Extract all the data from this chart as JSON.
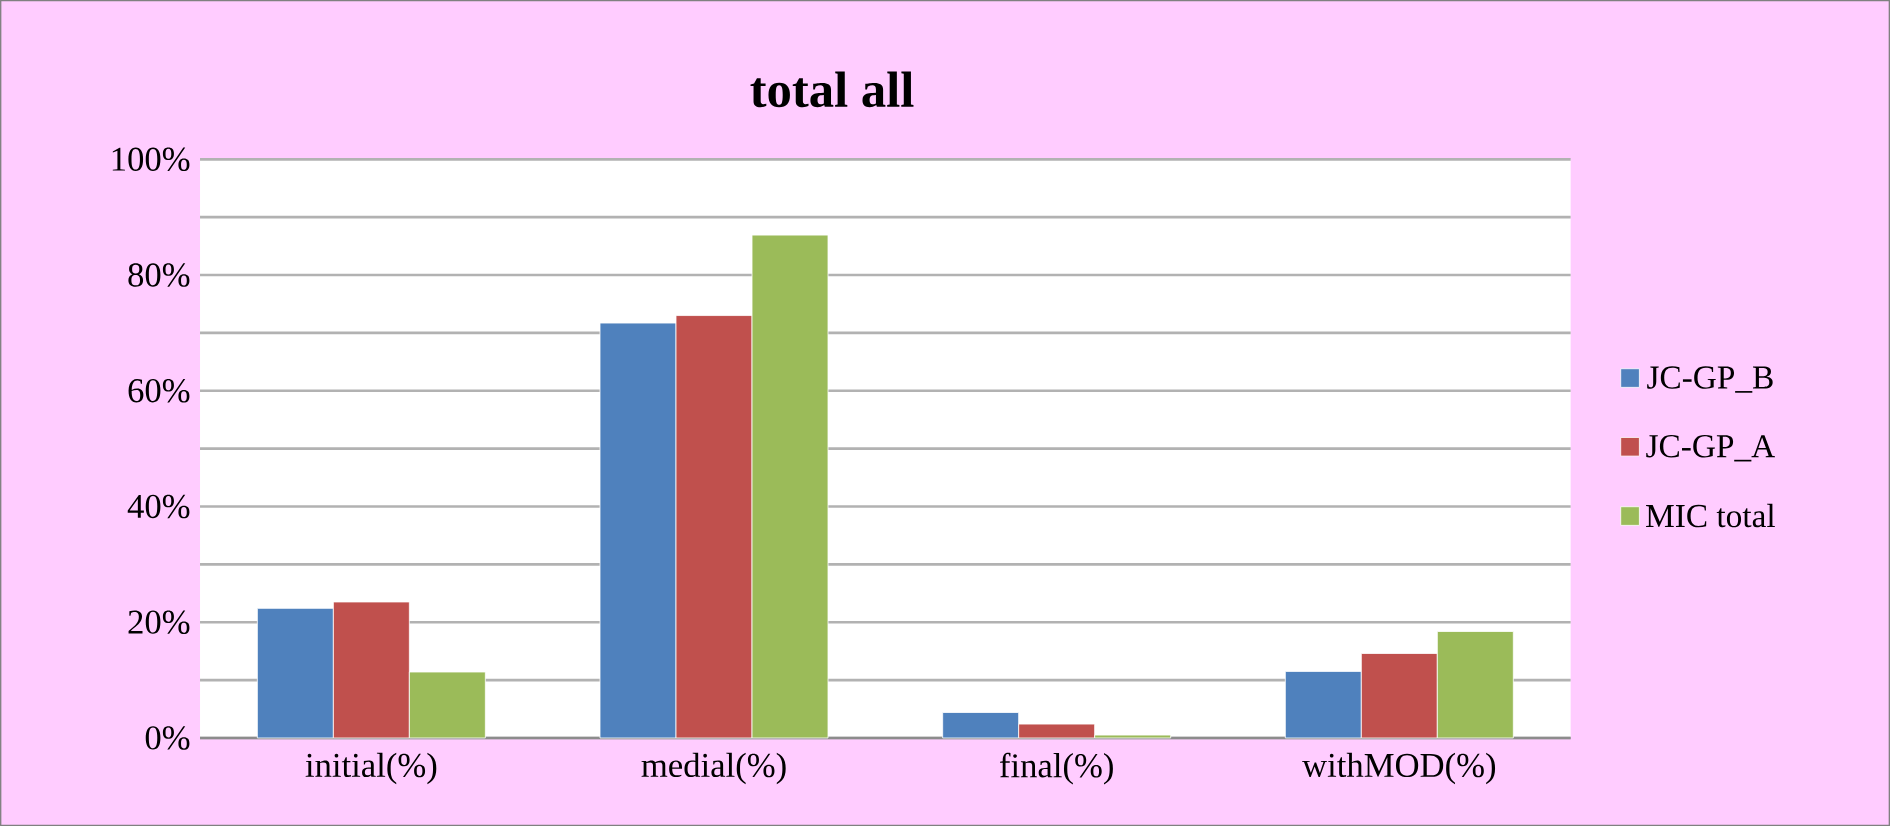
{
  "chart_data": {
    "type": "bar",
    "title": "total all",
    "categories": [
      "initial(%)",
      "medial(%)",
      "final(%)",
      "withMOD(%)"
    ],
    "series": [
      {
        "name": "JC-GP_B",
        "color": "#4f81bd",
        "values": [
          22.4,
          71.7,
          4.4,
          11.5
        ]
      },
      {
        "name": "JC-GP_A",
        "color": "#c0504d",
        "values": [
          23.5,
          73.0,
          2.4,
          14.6
        ]
      },
      {
        "name": "MIC total",
        "color": "#9bbb59",
        "values": [
          11.4,
          86.9,
          0.5,
          18.4
        ]
      }
    ],
    "ylim": [
      0,
      100
    ],
    "yticks": [
      {
        "value": 0,
        "label": "0%"
      },
      {
        "value": 10,
        "label": null
      },
      {
        "value": 20,
        "label": "20%"
      },
      {
        "value": 30,
        "label": null
      },
      {
        "value": 40,
        "label": "40%"
      },
      {
        "value": 50,
        "label": null
      },
      {
        "value": 60,
        "label": "60%"
      },
      {
        "value": 70,
        "label": null
      },
      {
        "value": 80,
        "label": "80%"
      },
      {
        "value": 90,
        "label": null
      },
      {
        "value": 100,
        "label": "100%"
      }
    ],
    "grid": "y",
    "legend": "right"
  }
}
